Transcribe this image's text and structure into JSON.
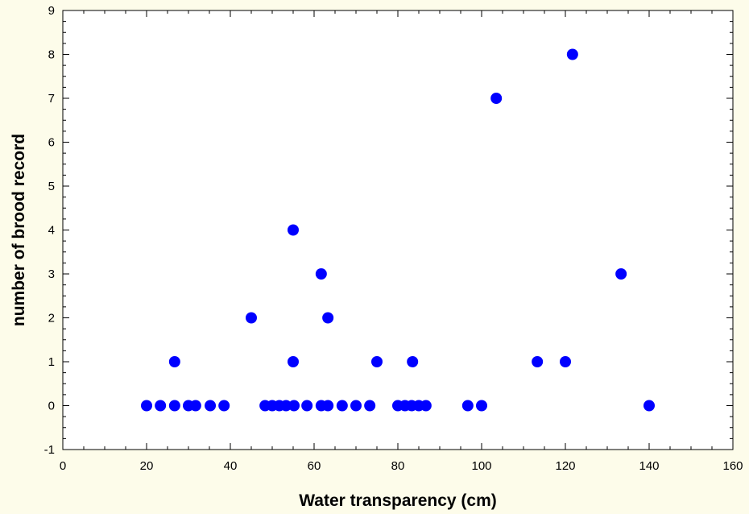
{
  "chart_data": {
    "type": "scatter",
    "title": "",
    "xlabel": "Water  transparency (cm)",
    "ylabel": "number of brood record",
    "xlim": [
      0,
      160
    ],
    "ylim": [
      -1,
      9
    ],
    "xticks": [
      0,
      20,
      40,
      60,
      80,
      100,
      120,
      140,
      160
    ],
    "yticks": [
      -1,
      0,
      1,
      2,
      3,
      4,
      5,
      6,
      7,
      8,
      9
    ],
    "grid": false,
    "legend": "none",
    "marker_color": "#0000FF",
    "plot_background": "#FFFFFF",
    "page_background": "#FDFCEA",
    "points": [
      {
        "x": 20,
        "y": 0
      },
      {
        "x": 23.3,
        "y": 0
      },
      {
        "x": 26.7,
        "y": 0
      },
      {
        "x": 30,
        "y": 0
      },
      {
        "x": 31.7,
        "y": 0
      },
      {
        "x": 35.2,
        "y": 0
      },
      {
        "x": 38.5,
        "y": 0
      },
      {
        "x": 48.3,
        "y": 0
      },
      {
        "x": 50,
        "y": 0
      },
      {
        "x": 51.7,
        "y": 0
      },
      {
        "x": 53.3,
        "y": 0
      },
      {
        "x": 55.2,
        "y": 0
      },
      {
        "x": 58.3,
        "y": 0
      },
      {
        "x": 61.7,
        "y": 0
      },
      {
        "x": 63.3,
        "y": 0
      },
      {
        "x": 66.7,
        "y": 0
      },
      {
        "x": 70,
        "y": 0
      },
      {
        "x": 73.3,
        "y": 0
      },
      {
        "x": 80,
        "y": 0
      },
      {
        "x": 81.7,
        "y": 0
      },
      {
        "x": 83.3,
        "y": 0
      },
      {
        "x": 85,
        "y": 0
      },
      {
        "x": 86.7,
        "y": 0
      },
      {
        "x": 96.7,
        "y": 0
      },
      {
        "x": 100,
        "y": 0
      },
      {
        "x": 140,
        "y": 0
      },
      {
        "x": 26.7,
        "y": 1
      },
      {
        "x": 55,
        "y": 1
      },
      {
        "x": 75,
        "y": 1
      },
      {
        "x": 83.5,
        "y": 1
      },
      {
        "x": 113.3,
        "y": 1
      },
      {
        "x": 120,
        "y": 1
      },
      {
        "x": 45,
        "y": 2
      },
      {
        "x": 63.3,
        "y": 2
      },
      {
        "x": 61.7,
        "y": 3
      },
      {
        "x": 133.3,
        "y": 3
      },
      {
        "x": 55,
        "y": 4
      },
      {
        "x": 103.5,
        "y": 7
      },
      {
        "x": 121.7,
        "y": 8
      }
    ]
  }
}
